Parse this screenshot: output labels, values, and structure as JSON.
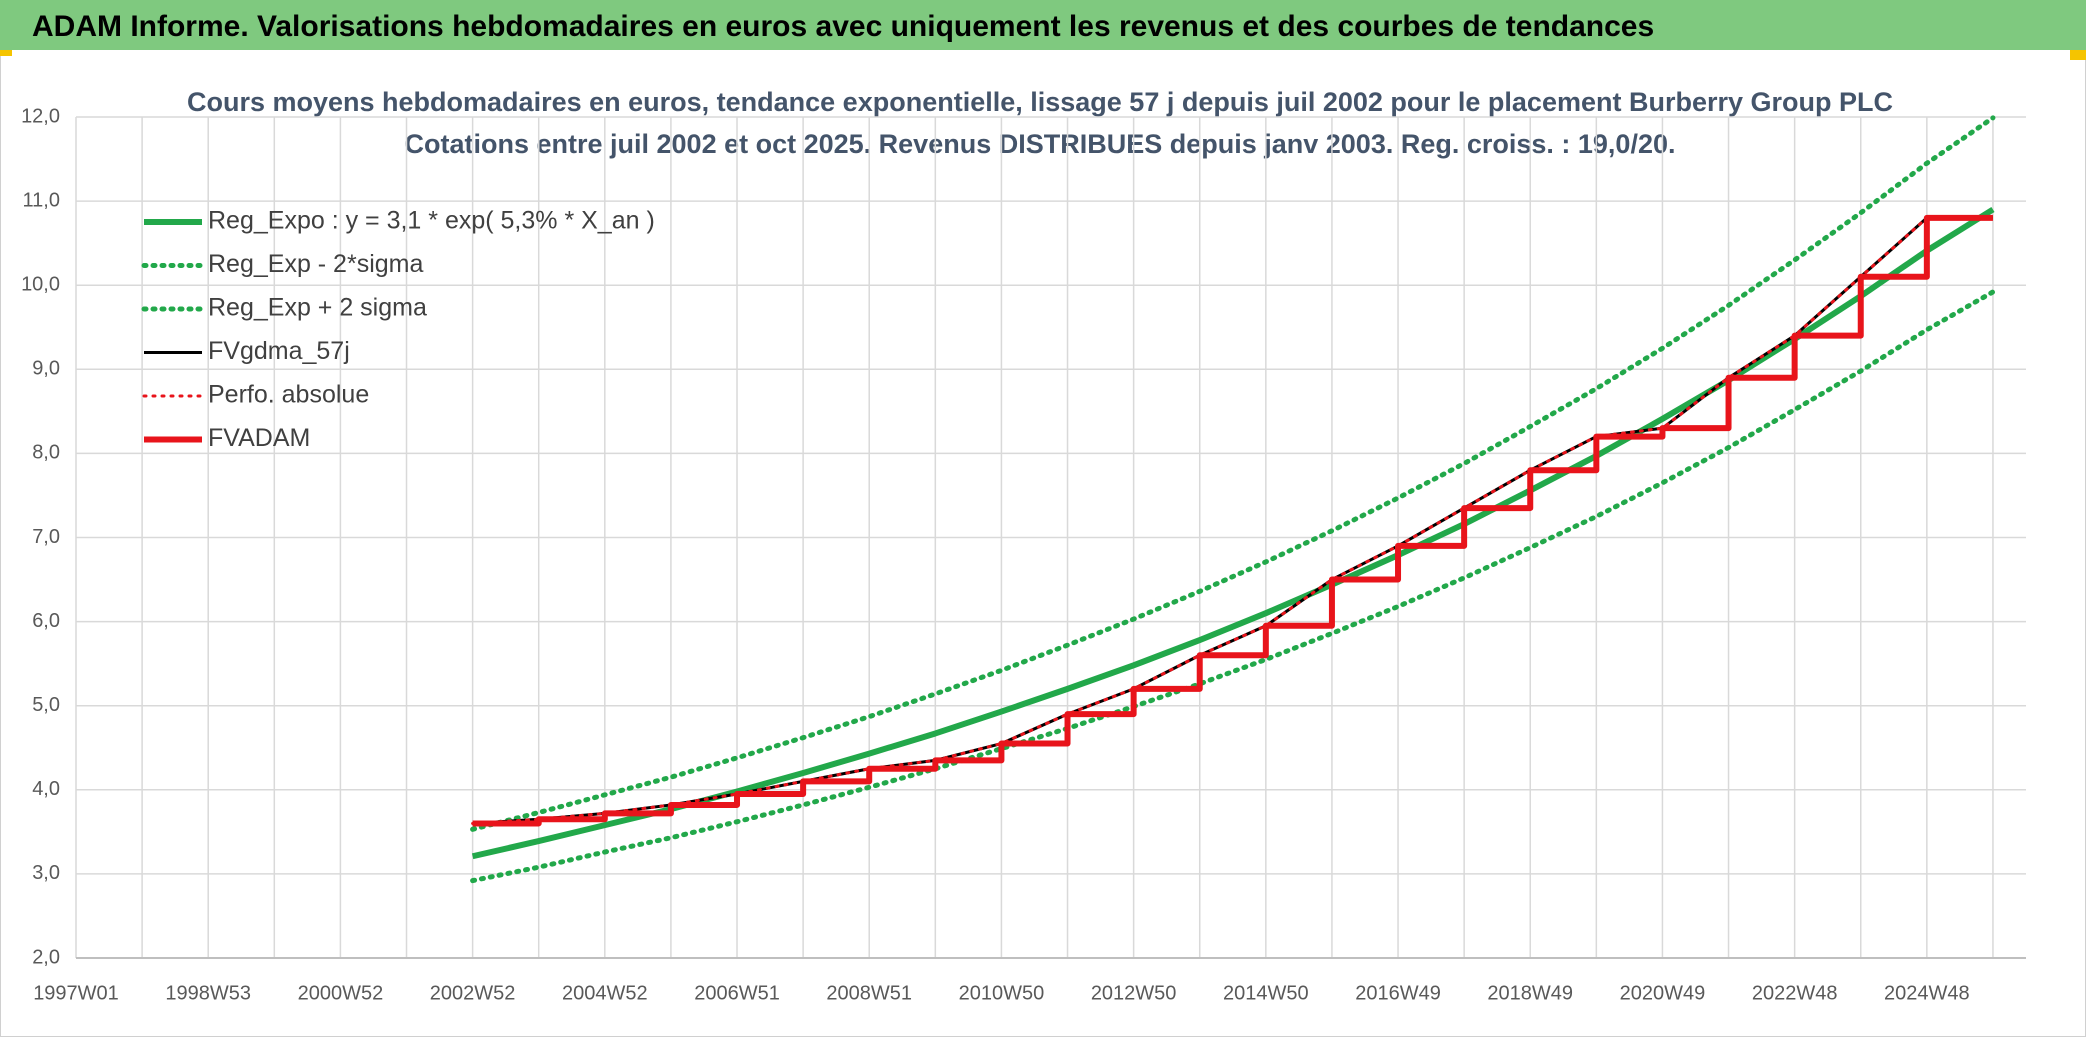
{
  "header": {
    "title": "ADAM Informe. Valorisations hebdomadaires en euros avec uniquement les revenus et des courbes de tendances"
  },
  "chart_data": {
    "type": "line",
    "title": "Cours moyens hebdomadaires en euros, tendance exponentielle, lissage 57 j depuis juil 2002 pour le placement Burberry Group PLC",
    "subtitle": "Cotations entre juil 2002 et oct 2025. Revenus DISTRIBUES depuis janv 2003. Reg. croiss. : 19,0/20.",
    "categories": [
      "1997W01",
      null,
      "1998W53",
      null,
      "2000W52",
      null,
      "2002W52",
      null,
      "2004W52",
      null,
      "2006W51",
      null,
      "2008W51",
      null,
      "2010W50",
      null,
      "2012W50",
      null,
      "2014W50",
      null,
      "2016W49",
      null,
      "2018W49",
      null,
      "2020W49",
      null,
      "2022W48",
      null,
      "2024W48",
      null
    ],
    "ylim": [
      2,
      12
    ],
    "yticks": [
      {
        "value": 2,
        "label": "2,0"
      },
      {
        "value": 3,
        "label": "3,0"
      },
      {
        "value": 4,
        "label": "4,0"
      },
      {
        "value": 5,
        "label": "5,0"
      },
      {
        "value": 6,
        "label": "6,0"
      },
      {
        "value": 7,
        "label": "7,0"
      },
      {
        "value": 8,
        "label": "8,0"
      },
      {
        "value": 9,
        "label": "9,0"
      },
      {
        "value": 10,
        "label": "10,0"
      },
      {
        "value": 11,
        "label": "11,0"
      },
      {
        "value": 12,
        "label": "12,0"
      }
    ],
    "grid": true,
    "legend": "upper left",
    "series": [
      {
        "name": "Reg_Expo : y = 3,1 * exp( 5,3% *  X_an )",
        "color": "#22a84a",
        "line_style": "solid",
        "values": [
          null,
          null,
          null,
          null,
          null,
          null,
          3.21,
          3.39,
          3.58,
          3.77,
          3.98,
          4.2,
          4.43,
          4.67,
          4.93,
          5.2,
          5.48,
          5.78,
          6.1,
          6.44,
          6.79,
          7.16,
          7.56,
          7.97,
          8.41,
          8.87,
          9.36,
          9.87,
          10.41,
          10.9
        ]
      },
      {
        "name": "Reg_Exp - 2*sigma",
        "color": "#22a84a",
        "line_style": "dotted",
        "values": [
          null,
          null,
          null,
          null,
          null,
          null,
          2.92,
          3.08,
          3.26,
          3.43,
          3.62,
          3.82,
          4.03,
          4.25,
          4.49,
          4.73,
          4.99,
          5.26,
          5.55,
          5.86,
          6.18,
          6.52,
          6.88,
          7.25,
          7.65,
          8.07,
          8.52,
          8.98,
          9.47,
          9.92
        ]
      },
      {
        "name": "Reg_Exp + 2 sigma",
        "color": "#22a84a",
        "line_style": "dotted",
        "values": [
          null,
          null,
          null,
          null,
          null,
          null,
          3.53,
          3.73,
          3.94,
          4.15,
          4.38,
          4.62,
          4.87,
          5.14,
          5.42,
          5.72,
          6.03,
          6.36,
          6.71,
          7.08,
          7.47,
          7.88,
          8.32,
          8.77,
          9.25,
          9.76,
          10.3,
          10.86,
          11.45,
          11.99
        ]
      },
      {
        "name": "FVgdma_57j",
        "color": "#000000",
        "line_style": "solid",
        "values": [
          null,
          null,
          null,
          null,
          null,
          null,
          3.6,
          3.65,
          3.72,
          3.82,
          3.95,
          4.1,
          4.25,
          4.35,
          4.55,
          4.9,
          5.2,
          5.6,
          5.95,
          6.5,
          6.9,
          7.35,
          7.8,
          8.2,
          8.3,
          8.9,
          9.4,
          10.1,
          10.8,
          10.8
        ]
      },
      {
        "name": "Perfo. absolue",
        "color": "#e8141b",
        "line_style": "dotted",
        "values": [
          null,
          null,
          null,
          null,
          null,
          null,
          3.6,
          3.65,
          3.72,
          3.82,
          3.95,
          4.1,
          4.25,
          4.35,
          4.55,
          4.9,
          5.2,
          5.6,
          5.95,
          6.5,
          6.9,
          7.35,
          7.8,
          8.2,
          8.3,
          8.9,
          9.4,
          10.1,
          10.8,
          10.8
        ]
      },
      {
        "name": "FVADAM",
        "color": "#e8141b",
        "line_style": "solid",
        "step": true,
        "values": [
          null,
          null,
          null,
          null,
          null,
          null,
          3.6,
          3.65,
          3.72,
          3.82,
          3.95,
          4.1,
          4.25,
          4.35,
          4.55,
          4.9,
          5.2,
          5.6,
          5.95,
          6.5,
          6.9,
          7.35,
          7.8,
          8.2,
          8.3,
          8.9,
          9.4,
          10.1,
          10.8,
          10.8
        ]
      }
    ]
  }
}
